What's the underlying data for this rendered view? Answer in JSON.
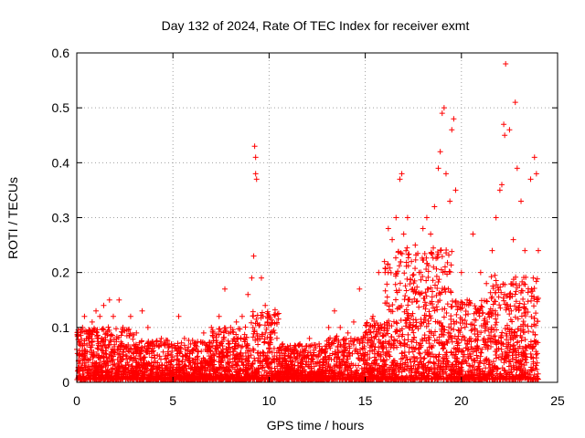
{
  "chart_data": {
    "type": "scatter",
    "title": "Day 132 of 2024, Rate Of TEC Index for receiver exmt",
    "xlabel": "GPS time / hours",
    "ylabel": "ROTI / TECUs",
    "xlim": [
      0,
      25
    ],
    "ylim": [
      0,
      0.6
    ],
    "x_ticks": [
      "0",
      "5",
      "10",
      "15",
      "20",
      "25"
    ],
    "y_ticks": [
      "0",
      "0.1",
      "0.2",
      "0.3",
      "0.4",
      "0.5",
      "0.6"
    ],
    "grid": true,
    "marker": "+",
    "color": "#ff0000",
    "series": [
      {
        "name": "",
        "points": [
          [
            0.0,
            0.06
          ],
          [
            0.1,
            0.05
          ],
          [
            0.3,
            0.1
          ],
          [
            0.4,
            0.12
          ],
          [
            0.6,
            0.09
          ],
          [
            0.8,
            0.11
          ],
          [
            1.0,
            0.13
          ],
          [
            1.2,
            0.12
          ],
          [
            1.4,
            0.14
          ],
          [
            1.7,
            0.15
          ],
          [
            1.9,
            0.12
          ],
          [
            2.2,
            0.15
          ],
          [
            2.4,
            0.1
          ],
          [
            2.8,
            0.12
          ],
          [
            3.1,
            0.09
          ],
          [
            3.4,
            0.13
          ],
          [
            3.7,
            0.1
          ],
          [
            4.0,
            0.07
          ],
          [
            4.4,
            0.08
          ],
          [
            4.8,
            0.07
          ],
          [
            5.3,
            0.12
          ],
          [
            5.6,
            0.08
          ],
          [
            6.1,
            0.07
          ],
          [
            6.6,
            0.09
          ],
          [
            7.0,
            0.1
          ],
          [
            7.4,
            0.12
          ],
          [
            7.7,
            0.17
          ],
          [
            8.0,
            0.1
          ],
          [
            8.3,
            0.11
          ],
          [
            8.6,
            0.12
          ],
          [
            8.9,
            0.16
          ],
          [
            9.1,
            0.19
          ],
          [
            9.2,
            0.23
          ],
          [
            9.25,
            0.43
          ],
          [
            9.3,
            0.41
          ],
          [
            9.3,
            0.38
          ],
          [
            9.35,
            0.37
          ],
          [
            9.6,
            0.19
          ],
          [
            9.8,
            0.14
          ],
          [
            10.0,
            0.12
          ],
          [
            10.3,
            0.09
          ],
          [
            10.7,
            0.07
          ],
          [
            11.2,
            0.06
          ],
          [
            11.6,
            0.07
          ],
          [
            12.1,
            0.08
          ],
          [
            12.6,
            0.07
          ],
          [
            13.1,
            0.1
          ],
          [
            13.4,
            0.13
          ],
          [
            13.7,
            0.1
          ],
          [
            14.1,
            0.09
          ],
          [
            14.4,
            0.11
          ],
          [
            14.7,
            0.17
          ],
          [
            15.0,
            0.09
          ],
          [
            15.4,
            0.12
          ],
          [
            15.7,
            0.2
          ],
          [
            16.0,
            0.22
          ],
          [
            16.2,
            0.28
          ],
          [
            16.4,
            0.26
          ],
          [
            16.6,
            0.3
          ],
          [
            16.8,
            0.37
          ],
          [
            16.9,
            0.38
          ],
          [
            17.0,
            0.27
          ],
          [
            17.2,
            0.3
          ],
          [
            17.4,
            0.22
          ],
          [
            17.6,
            0.25
          ],
          [
            17.8,
            0.2
          ],
          [
            18.0,
            0.28
          ],
          [
            18.2,
            0.3
          ],
          [
            18.4,
            0.27
          ],
          [
            18.6,
            0.32
          ],
          [
            18.8,
            0.39
          ],
          [
            18.9,
            0.42
          ],
          [
            19.0,
            0.49
          ],
          [
            19.1,
            0.5
          ],
          [
            19.2,
            0.38
          ],
          [
            19.4,
            0.33
          ],
          [
            19.5,
            0.46
          ],
          [
            19.6,
            0.48
          ],
          [
            19.7,
            0.35
          ],
          [
            20.0,
            0.2
          ],
          [
            20.3,
            0.15
          ],
          [
            20.6,
            0.27
          ],
          [
            21.0,
            0.2
          ],
          [
            21.3,
            0.18
          ],
          [
            21.6,
            0.24
          ],
          [
            21.8,
            0.3
          ],
          [
            22.0,
            0.35
          ],
          [
            22.1,
            0.36
          ],
          [
            22.2,
            0.47
          ],
          [
            22.25,
            0.45
          ],
          [
            22.3,
            0.58
          ],
          [
            22.5,
            0.46
          ],
          [
            22.7,
            0.26
          ],
          [
            22.8,
            0.51
          ],
          [
            22.9,
            0.39
          ],
          [
            23.1,
            0.33
          ],
          [
            23.3,
            0.24
          ],
          [
            23.6,
            0.37
          ],
          [
            23.8,
            0.41
          ],
          [
            23.9,
            0.38
          ],
          [
            24.0,
            0.24
          ]
        ]
      }
    ]
  }
}
